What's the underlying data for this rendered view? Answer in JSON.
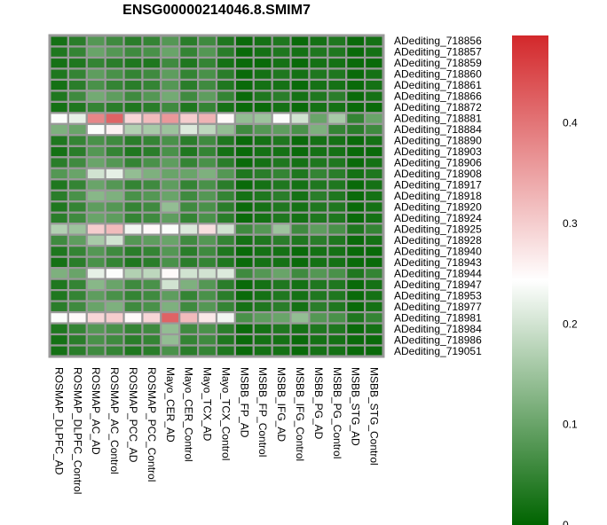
{
  "chart_data": {
    "type": "heatmap",
    "title": "ENSG00000214046.8.SMIM7",
    "columns": [
      "ROSMAP_DLPFC_AD",
      "ROSMAP_DLPFC_Control",
      "ROSMAP_AC_AD",
      "ROSMAP_AC_Control",
      "ROSMAP_PCC_AD",
      "ROSMAP_PCC_Control",
      "Mayo_CER_AD",
      "Mayo_CER_Control",
      "Mayo_TCX_AD",
      "Mayo_TCX_Control",
      "MSBB_FP_AD",
      "MSBB_FP_Control",
      "MSBB_IFG_AD",
      "MSBB_IFG_Control",
      "MSBB_PG_AD",
      "MSBB_PG_Control",
      "MSBB_STG_AD",
      "MSBB_STG_Control"
    ],
    "rows": [
      "ADediting_718856",
      "ADediting_718857",
      "ADediting_718859",
      "ADediting_718860",
      "ADediting_718861",
      "ADediting_718866",
      "ADediting_718872",
      "ADediting_718881",
      "ADediting_718884",
      "ADediting_718890",
      "ADediting_718903",
      "ADediting_718906",
      "ADediting_718908",
      "ADediting_718917",
      "ADediting_718918",
      "ADediting_718920",
      "ADediting_718924",
      "ADediting_718925",
      "ADediting_718928",
      "ADediting_718940",
      "ADediting_718943",
      "ADediting_718944",
      "ADediting_718947",
      "ADediting_718953",
      "ADediting_718977",
      "ADediting_718981",
      "ADediting_718984",
      "ADediting_718986",
      "ADediting_719051"
    ],
    "values": [
      [
        0.02,
        0.04,
        0.08,
        0.06,
        0.04,
        0.05,
        0.08,
        0.04,
        0.06,
        0.03,
        0.01,
        0.02,
        0.03,
        0.01,
        0.02,
        0.03,
        0.01,
        0.02
      ],
      [
        0.03,
        0.05,
        0.1,
        0.08,
        0.06,
        0.07,
        0.1,
        0.05,
        0.08,
        0.04,
        0.01,
        0.02,
        0.03,
        0.02,
        0.03,
        0.03,
        0.01,
        0.02
      ],
      [
        0.02,
        0.03,
        0.05,
        0.04,
        0.03,
        0.03,
        0.06,
        0.03,
        0.05,
        0.02,
        0.01,
        0.01,
        0.02,
        0.01,
        0.02,
        0.02,
        0.01,
        0.01
      ],
      [
        0.03,
        0.05,
        0.09,
        0.07,
        0.05,
        0.06,
        0.09,
        0.05,
        0.07,
        0.04,
        0.01,
        0.02,
        0.03,
        0.02,
        0.03,
        0.03,
        0.01,
        0.02
      ],
      [
        0.02,
        0.04,
        0.07,
        0.05,
        0.04,
        0.05,
        0.08,
        0.04,
        0.06,
        0.03,
        0.01,
        0.02,
        0.02,
        0.01,
        0.02,
        0.02,
        0.01,
        0.02
      ],
      [
        0.03,
        0.06,
        0.11,
        0.09,
        0.06,
        0.08,
        0.11,
        0.06,
        0.09,
        0.05,
        0.01,
        0.03,
        0.04,
        0.02,
        0.03,
        0.04,
        0.01,
        0.02
      ],
      [
        0.02,
        0.03,
        0.05,
        0.04,
        0.03,
        0.04,
        0.06,
        0.03,
        0.05,
        0.02,
        0.01,
        0.01,
        0.02,
        0.01,
        0.02,
        0.02,
        0.01,
        0.01
      ],
      [
        0.24,
        0.22,
        0.38,
        0.42,
        0.29,
        0.32,
        0.36,
        0.3,
        0.33,
        0.25,
        0.14,
        0.15,
        0.24,
        0.2,
        0.1,
        0.16,
        0.05,
        0.1
      ],
      [
        0.12,
        0.1,
        0.24,
        0.26,
        0.17,
        0.16,
        0.15,
        0.21,
        0.18,
        0.14,
        0.06,
        0.08,
        0.09,
        0.07,
        0.12,
        0.05,
        0.04,
        0.06
      ],
      [
        0.03,
        0.05,
        0.07,
        0.06,
        0.04,
        0.05,
        0.07,
        0.04,
        0.06,
        0.03,
        0.01,
        0.02,
        0.03,
        0.01,
        0.02,
        0.02,
        0.01,
        0.02
      ],
      [
        0.02,
        0.04,
        0.08,
        0.05,
        0.03,
        0.04,
        0.07,
        0.03,
        0.05,
        0.02,
        0.01,
        0.02,
        0.02,
        0.01,
        0.02,
        0.02,
        0.01,
        0.01
      ],
      [
        0.04,
        0.06,
        0.1,
        0.08,
        0.05,
        0.07,
        0.09,
        0.05,
        0.07,
        0.04,
        0.01,
        0.02,
        0.03,
        0.02,
        0.03,
        0.03,
        0.01,
        0.02
      ],
      [
        0.08,
        0.1,
        0.2,
        0.22,
        0.14,
        0.12,
        0.1,
        0.1,
        0.12,
        0.08,
        0.03,
        0.04,
        0.05,
        0.03,
        0.05,
        0.04,
        0.02,
        0.03
      ],
      [
        0.03,
        0.05,
        0.1,
        0.08,
        0.05,
        0.06,
        0.09,
        0.05,
        0.07,
        0.04,
        0.01,
        0.02,
        0.03,
        0.02,
        0.03,
        0.03,
        0.01,
        0.02
      ],
      [
        0.04,
        0.07,
        0.13,
        0.12,
        0.07,
        0.08,
        0.1,
        0.06,
        0.08,
        0.05,
        0.02,
        0.03,
        0.04,
        0.02,
        0.04,
        0.03,
        0.01,
        0.02
      ],
      [
        0.03,
        0.05,
        0.09,
        0.08,
        0.05,
        0.06,
        0.14,
        0.06,
        0.07,
        0.04,
        0.01,
        0.02,
        0.03,
        0.02,
        0.03,
        0.03,
        0.01,
        0.02
      ],
      [
        0.04,
        0.06,
        0.1,
        0.09,
        0.05,
        0.06,
        0.09,
        0.05,
        0.07,
        0.04,
        0.01,
        0.02,
        0.03,
        0.02,
        0.03,
        0.03,
        0.01,
        0.02
      ],
      [
        0.17,
        0.15,
        0.3,
        0.32,
        0.23,
        0.25,
        0.24,
        0.21,
        0.28,
        0.2,
        0.06,
        0.08,
        0.15,
        0.06,
        0.09,
        0.07,
        0.03,
        0.05
      ],
      [
        0.06,
        0.09,
        0.16,
        0.2,
        0.08,
        0.09,
        0.1,
        0.06,
        0.08,
        0.05,
        0.02,
        0.03,
        0.04,
        0.03,
        0.04,
        0.03,
        0.01,
        0.02
      ],
      [
        0.03,
        0.05,
        0.08,
        0.06,
        0.04,
        0.05,
        0.08,
        0.04,
        0.06,
        0.03,
        0.01,
        0.02,
        0.02,
        0.01,
        0.02,
        0.02,
        0.01,
        0.01
      ],
      [
        0.02,
        0.04,
        0.07,
        0.05,
        0.03,
        0.04,
        0.07,
        0.04,
        0.05,
        0.03,
        0.01,
        0.02,
        0.02,
        0.01,
        0.02,
        0.02,
        0.01,
        0.01
      ],
      [
        0.12,
        0.1,
        0.22,
        0.24,
        0.17,
        0.18,
        0.25,
        0.2,
        0.2,
        0.21,
        0.06,
        0.08,
        0.1,
        0.06,
        0.08,
        0.07,
        0.03,
        0.05
      ],
      [
        0.03,
        0.05,
        0.13,
        0.1,
        0.06,
        0.07,
        0.2,
        0.12,
        0.08,
        0.04,
        0.01,
        0.02,
        0.03,
        0.02,
        0.03,
        0.03,
        0.01,
        0.02
      ],
      [
        0.03,
        0.05,
        0.09,
        0.07,
        0.05,
        0.06,
        0.09,
        0.05,
        0.07,
        0.04,
        0.01,
        0.02,
        0.03,
        0.02,
        0.03,
        0.03,
        0.01,
        0.02
      ],
      [
        0.04,
        0.06,
        0.1,
        0.12,
        0.06,
        0.07,
        0.12,
        0.06,
        0.08,
        0.05,
        0.02,
        0.03,
        0.04,
        0.02,
        0.04,
        0.03,
        0.01,
        0.02
      ],
      [
        0.24,
        0.25,
        0.29,
        0.3,
        0.25,
        0.29,
        0.42,
        0.32,
        0.27,
        0.23,
        0.07,
        0.09,
        0.1,
        0.14,
        0.08,
        0.07,
        0.03,
        0.05
      ],
      [
        0.03,
        0.05,
        0.08,
        0.07,
        0.05,
        0.06,
        0.14,
        0.06,
        0.07,
        0.04,
        0.01,
        0.02,
        0.03,
        0.02,
        0.03,
        0.03,
        0.01,
        0.02
      ],
      [
        0.02,
        0.04,
        0.07,
        0.06,
        0.04,
        0.05,
        0.14,
        0.05,
        0.06,
        0.03,
        0.01,
        0.02,
        0.02,
        0.01,
        0.02,
        0.02,
        0.01,
        0.01
      ],
      [
        0.02,
        0.04,
        0.06,
        0.05,
        0.03,
        0.04,
        0.07,
        0.04,
        0.05,
        0.03,
        0.01,
        0.02,
        0.02,
        0.01,
        0.02,
        0.02,
        0.01,
        0.01
      ]
    ],
    "legend": {
      "min": 0,
      "max": 0.487,
      "ticks": [
        0,
        0.1,
        0.2,
        0.3,
        0.4
      ],
      "tick_labels": [
        "0",
        "0.1",
        "0.2",
        "0.3",
        "0.4"
      ],
      "colors": [
        "#006400",
        "#ffffff",
        "#d3282b"
      ],
      "placement": "right"
    }
  }
}
